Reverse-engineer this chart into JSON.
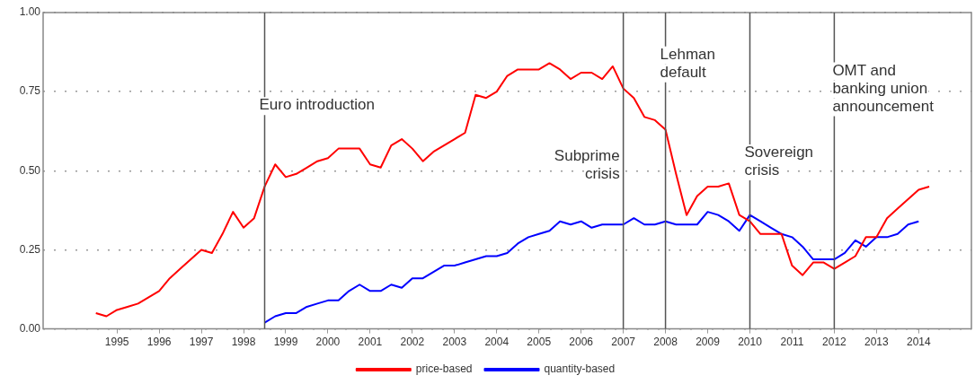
{
  "chart_data": {
    "type": "line",
    "xlim": [
      1993.75,
      2015.75
    ],
    "xticks": [
      {
        "value": 1995.5,
        "label": "1995"
      },
      {
        "value": 1996.5,
        "label": "1996"
      },
      {
        "value": 1997.5,
        "label": "1997"
      },
      {
        "value": 1998.5,
        "label": "1998"
      },
      {
        "value": 1999.5,
        "label": "1999"
      },
      {
        "value": 2000.5,
        "label": "2000"
      },
      {
        "value": 2001.5,
        "label": "2001"
      },
      {
        "value": 2002.5,
        "label": "2002"
      },
      {
        "value": 2003.5,
        "label": "2003"
      },
      {
        "value": 2004.5,
        "label": "2004"
      },
      {
        "value": 2005.5,
        "label": "2005"
      },
      {
        "value": 2006.5,
        "label": "2006"
      },
      {
        "value": 2007.5,
        "label": "2007"
      },
      {
        "value": 2008.5,
        "label": "2008"
      },
      {
        "value": 2009.5,
        "label": "2009"
      },
      {
        "value": 2010.5,
        "label": "2010"
      },
      {
        "value": 2011.5,
        "label": "2011"
      },
      {
        "value": 2012.5,
        "label": "2012"
      },
      {
        "value": 2013.5,
        "label": "2013"
      },
      {
        "value": 2014.5,
        "label": "2014"
      }
    ],
    "ylim": [
      0,
      1
    ],
    "yticks": [
      {
        "value": 0,
        "label": "0.00"
      },
      {
        "value": 0.25,
        "label": "0.25"
      },
      {
        "value": 0.5,
        "label": "0.50"
      },
      {
        "value": 0.75,
        "label": "0.75"
      },
      {
        "value": 1,
        "label": "1.00"
      }
    ],
    "grid": "y",
    "legend": "bottom",
    "series": [
      {
        "name": "price-based",
        "color": "#ff0000",
        "x": [
          1995,
          1995.25,
          1995.5,
          1995.75,
          1996,
          1996.25,
          1996.5,
          1996.75,
          1997,
          1997.25,
          1997.5,
          1997.75,
          1998,
          1998.25,
          1998.5,
          1998.75,
          1999,
          1999.25,
          1999.5,
          1999.75,
          2000,
          2000.25,
          2000.5,
          2000.75,
          2001,
          2001.25,
          2001.5,
          2001.75,
          2002,
          2002.25,
          2002.5,
          2002.75,
          2003,
          2003.25,
          2003.5,
          2003.75,
          2004,
          2004.25,
          2004.5,
          2004.75,
          2005,
          2005.25,
          2005.5,
          2005.75,
          2006,
          2006.25,
          2006.5,
          2006.75,
          2007,
          2007.25,
          2007.5,
          2007.75,
          2008,
          2008.25,
          2008.5,
          2008.75,
          2009,
          2009.25,
          2009.5,
          2009.75,
          2010,
          2010.25,
          2010.5,
          2010.75,
          2011,
          2011.25,
          2011.5,
          2011.75,
          2012,
          2012.25,
          2012.5,
          2012.75,
          2013,
          2013.25,
          2013.5,
          2013.75,
          2014,
          2014.25,
          2014.5,
          2014.75
        ],
        "values": [
          0.05,
          0.04,
          0.06,
          0.07,
          0.08,
          0.1,
          0.12,
          0.16,
          0.19,
          0.22,
          0.25,
          0.24,
          0.3,
          0.37,
          0.32,
          0.35,
          0.45,
          0.52,
          0.48,
          0.49,
          0.51,
          0.53,
          0.54,
          0.57,
          0.57,
          0.57,
          0.52,
          0.51,
          0.58,
          0.6,
          0.57,
          0.53,
          0.56,
          0.58,
          0.6,
          0.62,
          0.74,
          0.73,
          0.75,
          0.8,
          0.82,
          0.82,
          0.82,
          0.84,
          0.82,
          0.79,
          0.81,
          0.81,
          0.79,
          0.83,
          0.76,
          0.73,
          0.67,
          0.66,
          0.63,
          0.49,
          0.36,
          0.42,
          0.45,
          0.45,
          0.46,
          0.36,
          0.34,
          0.3,
          0.3,
          0.3,
          0.2,
          0.17,
          0.21,
          0.21,
          0.19,
          0.21,
          0.23,
          0.29,
          0.29,
          0.35,
          0.38,
          0.41,
          0.44,
          0.45
        ]
      },
      {
        "name": "quantity-based",
        "color": "#0000ff",
        "x": [
          1999,
          1999.25,
          1999.5,
          1999.75,
          2000,
          2000.25,
          2000.5,
          2000.75,
          2001,
          2001.25,
          2001.5,
          2001.75,
          2002,
          2002.25,
          2002.5,
          2002.75,
          2003,
          2003.25,
          2003.5,
          2003.75,
          2004,
          2004.25,
          2004.5,
          2004.75,
          2005,
          2005.25,
          2005.5,
          2005.75,
          2006,
          2006.25,
          2006.5,
          2006.75,
          2007,
          2007.25,
          2007.5,
          2007.75,
          2008,
          2008.25,
          2008.5,
          2008.75,
          2009,
          2009.25,
          2009.5,
          2009.75,
          2010,
          2010.25,
          2010.5,
          2010.75,
          2011,
          2011.25,
          2011.5,
          2011.75,
          2012,
          2012.25,
          2012.5,
          2012.75,
          2013,
          2013.25,
          2013.5,
          2013.75,
          2014,
          2014.25,
          2014.5
        ],
        "values": [
          0.02,
          0.04,
          0.05,
          0.05,
          0.07,
          0.08,
          0.09,
          0.09,
          0.12,
          0.14,
          0.12,
          0.12,
          0.14,
          0.13,
          0.16,
          0.16,
          0.18,
          0.2,
          0.2,
          0.21,
          0.22,
          0.23,
          0.23,
          0.24,
          0.27,
          0.29,
          0.3,
          0.31,
          0.34,
          0.33,
          0.34,
          0.32,
          0.33,
          0.33,
          0.33,
          0.35,
          0.33,
          0.33,
          0.34,
          0.33,
          0.33,
          0.33,
          0.37,
          0.36,
          0.34,
          0.31,
          0.36,
          0.34,
          0.32,
          0.3,
          0.29,
          0.26,
          0.22,
          0.22,
          0.22,
          0.24,
          0.28,
          0.26,
          0.29,
          0.29,
          0.3,
          0.33,
          0.34
        ]
      }
    ],
    "ref_lines": [
      {
        "axis": "x",
        "value": 1999,
        "label": "Euro introduction",
        "color": "#555555"
      },
      {
        "axis": "x",
        "value": 2007.5,
        "label": "Subprime crisis",
        "color": "#555555"
      },
      {
        "axis": "x",
        "value": 2008.5,
        "label": "Lehman default",
        "color": "#555555"
      },
      {
        "axis": "x",
        "value": 2010.5,
        "label": "Sovereign crisis",
        "color": "#555555"
      },
      {
        "axis": "x",
        "value": 2012.5,
        "label": "OMT and banking union announcement",
        "color": "#555555"
      }
    ]
  }
}
